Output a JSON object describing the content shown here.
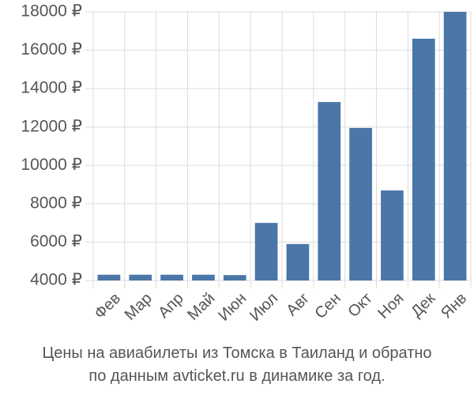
{
  "chart_data": {
    "type": "bar",
    "title_lines": [
      "Цены на авиабилеты из Томска в Таиланд и обратно",
      "по данным avticket.ru в динамике за год."
    ],
    "categories": [
      "Фев",
      "Мар",
      "Апр",
      "Май",
      "Июн",
      "Июл",
      "Авг",
      "Сен",
      "Окт",
      "Ноя",
      "Дек",
      "Янв"
    ],
    "values": [
      4300,
      4300,
      4300,
      4300,
      4280,
      7000,
      5900,
      13300,
      11950,
      8690,
      16600,
      18000
    ],
    "color": "#4a76a8",
    "ylim": [
      4000,
      18000
    ],
    "yticks": [
      {
        "value": 4000,
        "label": "4000 ₽"
      },
      {
        "value": 6000,
        "label": "6000 ₽"
      },
      {
        "value": 8000,
        "label": "8000 ₽"
      },
      {
        "value": 10000,
        "label": "10000 ₽"
      },
      {
        "value": 12000,
        "label": "12000 ₽"
      },
      {
        "value": 14000,
        "label": "14000 ₽"
      },
      {
        "value": 16000,
        "label": "16000 ₽"
      },
      {
        "value": 18000,
        "label": "18000 ₽"
      }
    ],
    "grid": true
  }
}
